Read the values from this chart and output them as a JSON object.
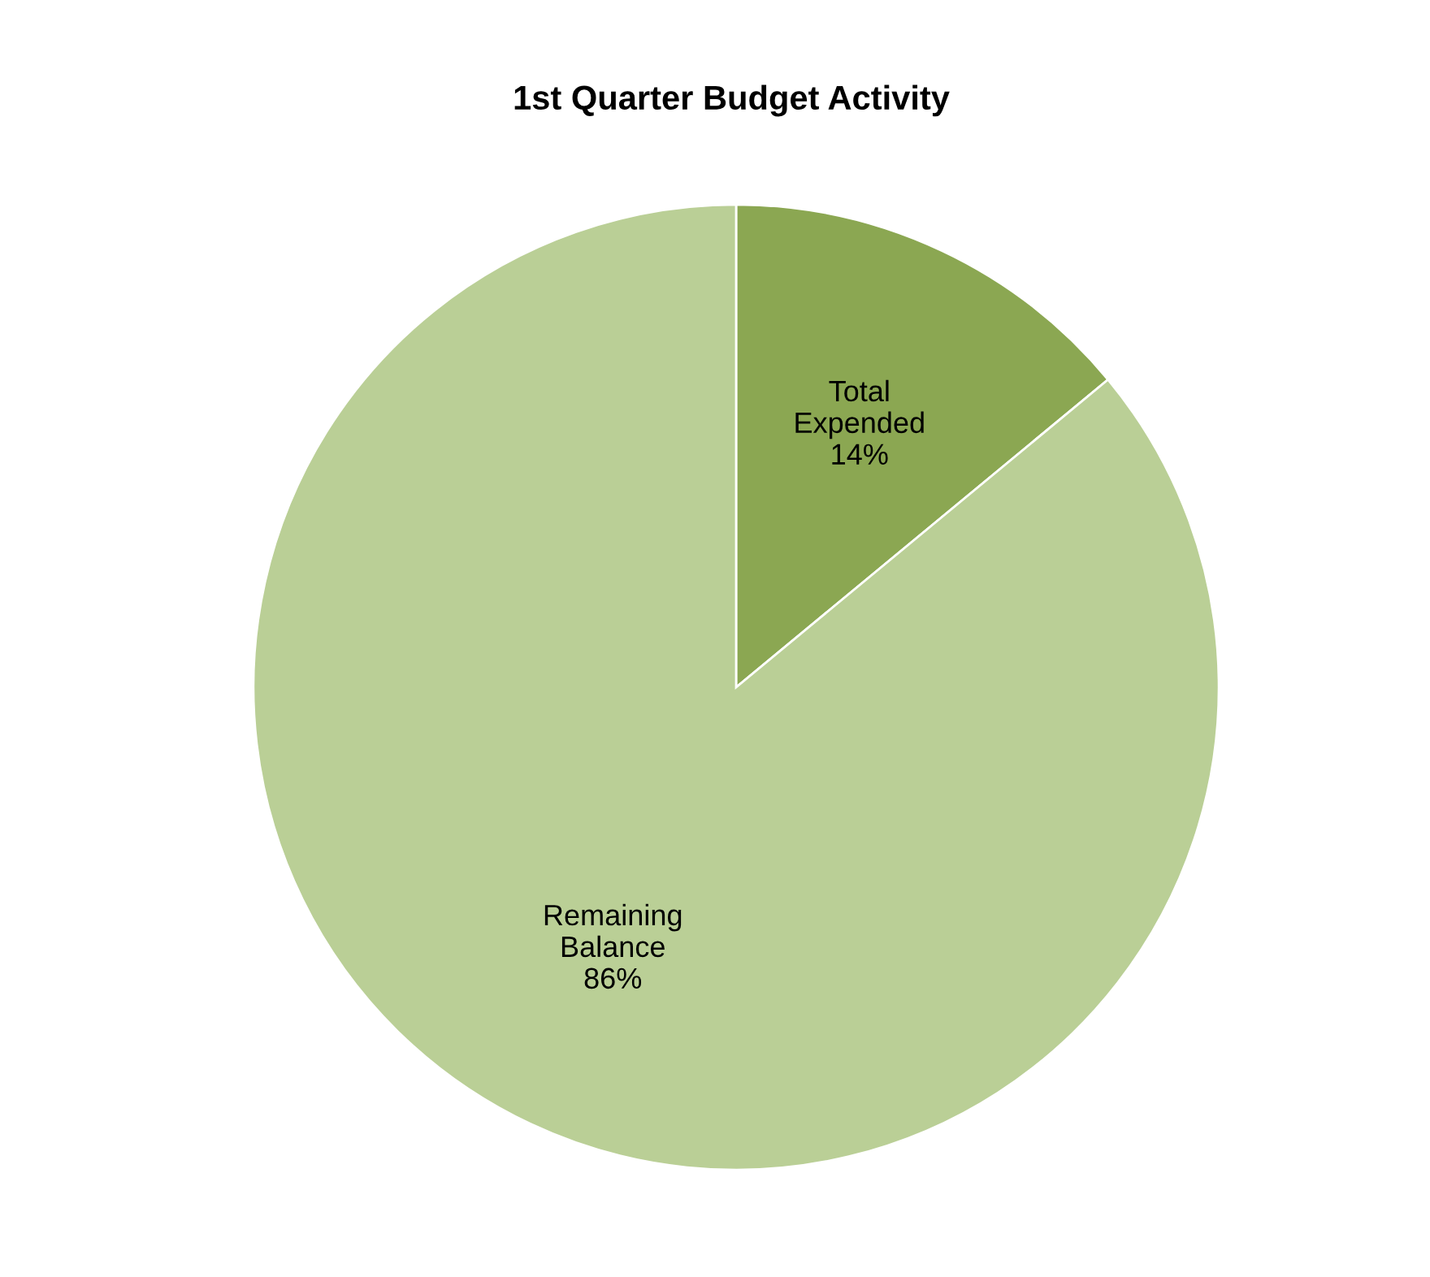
{
  "chart_data": {
    "type": "pie",
    "title": "1st Quarter Budget Activity",
    "categories": [
      "Total Expended",
      "Remaining Balance"
    ],
    "values": [
      14,
      86
    ],
    "value_labels": [
      "14%",
      "86%"
    ],
    "colors": [
      "#8ba752",
      "#bacf96"
    ],
    "legend": false
  }
}
